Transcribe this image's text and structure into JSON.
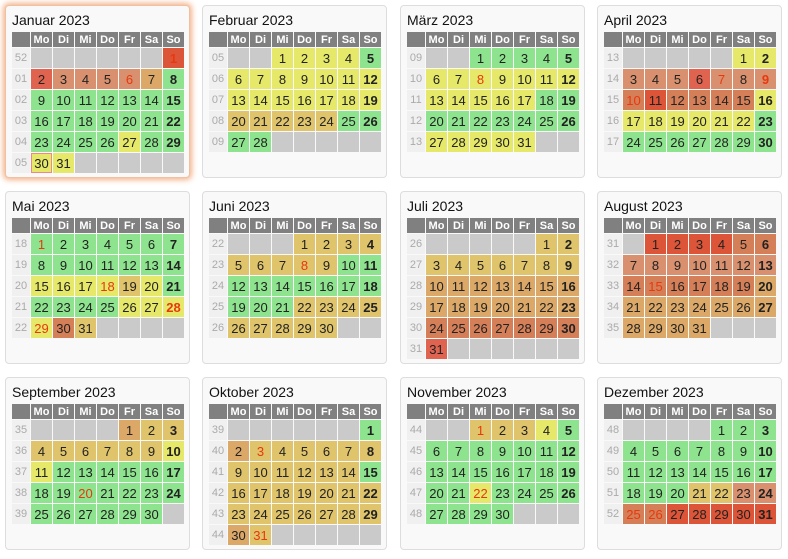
{
  "weekday_headers": [
    "Mo",
    "Di",
    "Mi",
    "Do",
    "Fr",
    "Sa",
    "So"
  ],
  "palette": {
    "G": "#8ee48e",
    "Y": "#e6e86a",
    "T": "#dfc46c",
    "A": "#dba868",
    "O": "#d9906e",
    "P": "#d47f58",
    "R": "#e0634f",
    "D": "#dc5538"
  },
  "current_month": 0,
  "today": {
    "month": 0,
    "day": 30
  },
  "months": [
    {
      "title": "Januar 2023",
      "holidays": [
        1,
        6
      ],
      "weeks": [
        {
          "kw": "52",
          "days": [
            null,
            null,
            null,
            null,
            null,
            null,
            1
          ],
          "colors": "------D"
        },
        {
          "kw": "01",
          "days": [
            2,
            3,
            4,
            5,
            6,
            7,
            8
          ],
          "colors": "ROOOOAG"
        },
        {
          "kw": "02",
          "days": [
            9,
            10,
            11,
            12,
            13,
            14,
            15
          ],
          "colors": "GGGGGGG"
        },
        {
          "kw": "03",
          "days": [
            16,
            17,
            18,
            19,
            20,
            21,
            22
          ],
          "colors": "GGGGGGG"
        },
        {
          "kw": "04",
          "days": [
            23,
            24,
            25,
            26,
            27,
            28,
            29
          ],
          "colors": "GGGGYGG"
        },
        {
          "kw": "05",
          "days": [
            30,
            31,
            null,
            null,
            null,
            null,
            null
          ],
          "colors": "YY-----"
        }
      ]
    },
    {
      "title": "Februar 2023",
      "holidays": [],
      "weeks": [
        {
          "kw": "05",
          "days": [
            null,
            null,
            1,
            2,
            3,
            4,
            5
          ],
          "colors": "--YYYYG"
        },
        {
          "kw": "06",
          "days": [
            6,
            7,
            8,
            9,
            10,
            11,
            12
          ],
          "colors": "YYYYYYY"
        },
        {
          "kw": "07",
          "days": [
            13,
            14,
            15,
            16,
            17,
            18,
            19
          ],
          "colors": "YYYYYYY"
        },
        {
          "kw": "08",
          "days": [
            20,
            21,
            22,
            23,
            24,
            25,
            26
          ],
          "colors": "TTTTTGG"
        },
        {
          "kw": "09",
          "days": [
            27,
            28,
            null,
            null,
            null,
            null,
            null
          ],
          "colors": "GG-----"
        }
      ]
    },
    {
      "title": "März 2023",
      "holidays": [
        8
      ],
      "weeks": [
        {
          "kw": "09",
          "days": [
            null,
            null,
            1,
            2,
            3,
            4,
            5
          ],
          "colors": "--GGGGG"
        },
        {
          "kw": "10",
          "days": [
            6,
            7,
            8,
            9,
            10,
            11,
            12
          ],
          "colors": "YYYYYYY"
        },
        {
          "kw": "11",
          "days": [
            13,
            14,
            15,
            16,
            17,
            18,
            19
          ],
          "colors": "YYYYYGG"
        },
        {
          "kw": "12",
          "days": [
            20,
            21,
            22,
            23,
            24,
            25,
            26
          ],
          "colors": "GGGGGGG"
        },
        {
          "kw": "13",
          "days": [
            27,
            28,
            29,
            30,
            31,
            null,
            null
          ],
          "colors": "YYYYY--"
        }
      ]
    },
    {
      "title": "April 2023",
      "holidays": [
        7,
        9,
        10
      ],
      "weeks": [
        {
          "kw": "13",
          "days": [
            null,
            null,
            null,
            null,
            null,
            1,
            2
          ],
          "colors": "-----YY"
        },
        {
          "kw": "14",
          "days": [
            3,
            4,
            5,
            6,
            7,
            8,
            9
          ],
          "colors": "OOOROOO"
        },
        {
          "kw": "15",
          "days": [
            10,
            11,
            12,
            13,
            14,
            15,
            16
          ],
          "colors": "PDPPPPY"
        },
        {
          "kw": "16",
          "days": [
            17,
            18,
            19,
            20,
            21,
            22,
            23
          ],
          "colors": "YYYYYYG"
        },
        {
          "kw": "17",
          "days": [
            24,
            25,
            26,
            27,
            28,
            29,
            30
          ],
          "colors": "GGGGGGG"
        }
      ]
    },
    {
      "title": "Mai 2023",
      "holidays": [
        1,
        18,
        28,
        29
      ],
      "weeks": [
        {
          "kw": "18",
          "days": [
            1,
            2,
            3,
            4,
            5,
            6,
            7
          ],
          "colors": "GGGGGGG"
        },
        {
          "kw": "19",
          "days": [
            8,
            9,
            10,
            11,
            12,
            13,
            14
          ],
          "colors": "GGGGGGG"
        },
        {
          "kw": "20",
          "days": [
            15,
            16,
            17,
            18,
            19,
            20,
            21
          ],
          "colors": "YYYYTYG"
        },
        {
          "kw": "21",
          "days": [
            22,
            23,
            24,
            25,
            26,
            27,
            28
          ],
          "colors": "GGGGYYY"
        },
        {
          "kw": "22",
          "days": [
            29,
            30,
            31,
            null,
            null,
            null,
            null
          ],
          "colors": "YPT----"
        }
      ]
    },
    {
      "title": "Juni 2023",
      "holidays": [
        8
      ],
      "weeks": [
        {
          "kw": "22",
          "days": [
            null,
            null,
            null,
            1,
            2,
            3,
            4
          ],
          "colors": "---TTTT"
        },
        {
          "kw": "23",
          "days": [
            5,
            6,
            7,
            8,
            9,
            10,
            11
          ],
          "colors": "TTTTTGG"
        },
        {
          "kw": "24",
          "days": [
            12,
            13,
            14,
            15,
            16,
            17,
            18
          ],
          "colors": "GGGGGGG"
        },
        {
          "kw": "25",
          "days": [
            19,
            20,
            21,
            22,
            23,
            24,
            25
          ],
          "colors": "GGGTTTT"
        },
        {
          "kw": "26",
          "days": [
            26,
            27,
            28,
            29,
            30,
            null,
            null
          ],
          "colors": "TTTTT--"
        }
      ]
    },
    {
      "title": "Juli 2023",
      "holidays": [],
      "weeks": [
        {
          "kw": "26",
          "days": [
            null,
            null,
            null,
            null,
            null,
            1,
            2
          ],
          "colors": "-----TT"
        },
        {
          "kw": "27",
          "days": [
            3,
            4,
            5,
            6,
            7,
            8,
            9
          ],
          "colors": "TTTTTTT"
        },
        {
          "kw": "28",
          "days": [
            10,
            11,
            12,
            13,
            14,
            15,
            16
          ],
          "colors": "AAAAAAA"
        },
        {
          "kw": "29",
          "days": [
            17,
            18,
            19,
            20,
            21,
            22,
            23
          ],
          "colors": "AAAAAAA"
        },
        {
          "kw": "30",
          "days": [
            24,
            25,
            26,
            27,
            28,
            29,
            30
          ],
          "colors": "PPPPPPP"
        },
        {
          "kw": "31",
          "days": [
            31,
            null,
            null,
            null,
            null,
            null,
            null
          ],
          "colors": "R------"
        }
      ]
    },
    {
      "title": "August 2023",
      "holidays": [
        15
      ],
      "weeks": [
        {
          "kw": "31",
          "days": [
            null,
            1,
            2,
            3,
            4,
            5,
            6
          ],
          "colors": "-DDDDPP"
        },
        {
          "kw": "32",
          "days": [
            7,
            8,
            9,
            10,
            11,
            12,
            13
          ],
          "colors": "OOOOOOO"
        },
        {
          "kw": "33",
          "days": [
            14,
            15,
            16,
            17,
            18,
            19,
            20
          ],
          "colors": "PPPPPPA"
        },
        {
          "kw": "34",
          "days": [
            21,
            22,
            23,
            24,
            25,
            26,
            27
          ],
          "colors": "AAAAAAA"
        },
        {
          "kw": "35",
          "days": [
            28,
            29,
            30,
            31,
            null,
            null,
            null
          ],
          "colors": "AAAA---"
        }
      ]
    },
    {
      "title": "September 2023",
      "holidays": [
        20
      ],
      "weeks": [
        {
          "kw": "35",
          "days": [
            null,
            null,
            null,
            null,
            1,
            2,
            3
          ],
          "colors": "----ATT"
        },
        {
          "kw": "36",
          "days": [
            4,
            5,
            6,
            7,
            8,
            9,
            10
          ],
          "colors": "TTTTTTY"
        },
        {
          "kw": "37",
          "days": [
            11,
            12,
            13,
            14,
            15,
            16,
            17
          ],
          "colors": "YGGGGGG"
        },
        {
          "kw": "38",
          "days": [
            18,
            19,
            20,
            21,
            22,
            23,
            24
          ],
          "colors": "GGGGGGG"
        },
        {
          "kw": "39",
          "days": [
            25,
            26,
            27,
            28,
            29,
            30,
            null
          ],
          "colors": "GGGGGG-"
        }
      ]
    },
    {
      "title": "Oktober 2023",
      "holidays": [
        3,
        31
      ],
      "weeks": [
        {
          "kw": "39",
          "days": [
            null,
            null,
            null,
            null,
            null,
            null,
            1
          ],
          "colors": "------G"
        },
        {
          "kw": "40",
          "days": [
            2,
            3,
            4,
            5,
            6,
            7,
            8
          ],
          "colors": "ATTTTTT"
        },
        {
          "kw": "41",
          "days": [
            9,
            10,
            11,
            12,
            13,
            14,
            15
          ],
          "colors": "TTTTTTG"
        },
        {
          "kw": "42",
          "days": [
            16,
            17,
            18,
            19,
            20,
            21,
            22
          ],
          "colors": "TTTTTTT"
        },
        {
          "kw": "43",
          "days": [
            23,
            24,
            25,
            26,
            27,
            28,
            29
          ],
          "colors": "TTTTTTT"
        },
        {
          "kw": "44",
          "days": [
            30,
            31,
            null,
            null,
            null,
            null,
            null
          ],
          "colors": "AT-----"
        }
      ]
    },
    {
      "title": "November 2023",
      "holidays": [
        1,
        22
      ],
      "weeks": [
        {
          "kw": "44",
          "days": [
            null,
            null,
            1,
            2,
            3,
            4,
            5
          ],
          "colors": "--TTTYG"
        },
        {
          "kw": "45",
          "days": [
            6,
            7,
            8,
            9,
            10,
            11,
            12
          ],
          "colors": "GGGGGGG"
        },
        {
          "kw": "46",
          "days": [
            13,
            14,
            15,
            16,
            17,
            18,
            19
          ],
          "colors": "GGGGGGG"
        },
        {
          "kw": "47",
          "days": [
            20,
            21,
            22,
            23,
            24,
            25,
            26
          ],
          "colors": "GGYGGGG"
        },
        {
          "kw": "48",
          "days": [
            27,
            28,
            29,
            30,
            null,
            null,
            null
          ],
          "colors": "GGGG---"
        }
      ]
    },
    {
      "title": "Dezember 2023",
      "holidays": [
        25,
        26
      ],
      "weeks": [
        {
          "kw": "48",
          "days": [
            null,
            null,
            null,
            null,
            1,
            2,
            3
          ],
          "colors": "----GGG"
        },
        {
          "kw": "49",
          "days": [
            4,
            5,
            6,
            7,
            8,
            9,
            10
          ],
          "colors": "GGGGGGG"
        },
        {
          "kw": "50",
          "days": [
            11,
            12,
            13,
            14,
            15,
            16,
            17
          ],
          "colors": "GGGGGGG"
        },
        {
          "kw": "51",
          "days": [
            18,
            19,
            20,
            21,
            22,
            23,
            24
          ],
          "colors": "GGGTTOO"
        },
        {
          "kw": "52",
          "days": [
            25,
            26,
            27,
            28,
            29,
            30,
            31
          ],
          "colors": "PPDDDDD"
        }
      ]
    }
  ]
}
